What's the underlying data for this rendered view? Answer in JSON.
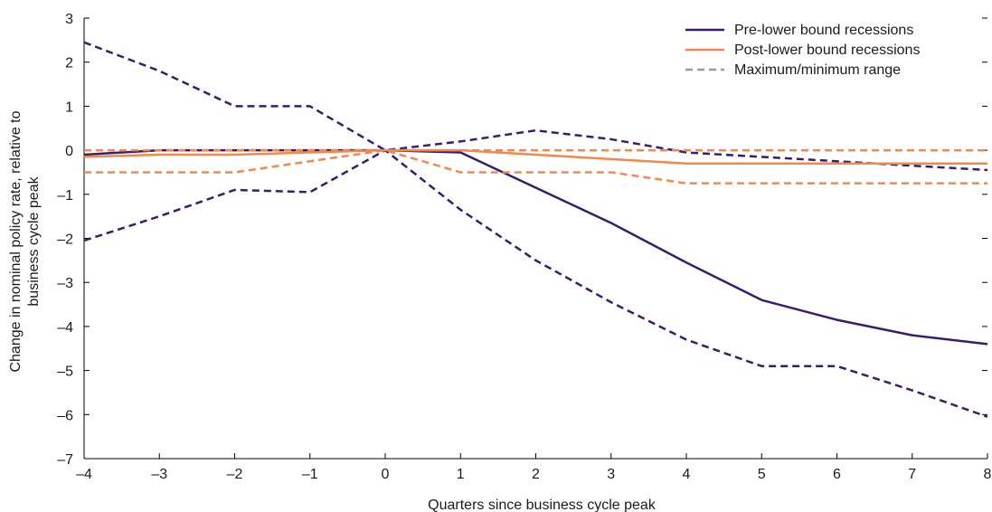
{
  "chart_data": {
    "type": "line",
    "xlabel": "Quarters since business cycle peak",
    "ylabel": [
      "Change in nominal policy rate, relative to",
      "business cycle peak"
    ],
    "xlim": [
      -4,
      8
    ],
    "ylim": [
      -7,
      3
    ],
    "x": [
      -4,
      -3,
      -2,
      -1,
      0,
      1,
      2,
      3,
      4,
      5,
      6,
      7,
      8
    ],
    "x_tick_labels": [
      "–4",
      "–3",
      "–2",
      "–1",
      "0",
      "1",
      "2",
      "3",
      "4",
      "5",
      "6",
      "7",
      "8"
    ],
    "y_ticks": [
      3,
      2,
      1,
      0,
      -1,
      -2,
      -3,
      -4,
      -5,
      -6,
      -7
    ],
    "y_tick_labels": [
      "3",
      "2",
      "1",
      "0",
      "–1",
      "–2",
      "–3",
      "–4",
      "–5",
      "–6",
      "–7"
    ],
    "legend_position": "top-right",
    "legend": [
      {
        "label": "Pre-lower bound recessions",
        "color": "#3b1c6b",
        "style": "solid"
      },
      {
        "label": "Post-lower bound recessions",
        "color": "#f4884a",
        "style": "solid"
      },
      {
        "label": "Maximum/minimum range",
        "color": "#9a9a9a",
        "style": "dashed"
      }
    ],
    "series": [
      {
        "name": "Pre-lower bound recessions",
        "color": "#3b1c6b",
        "style": "solid",
        "values": [
          -0.1,
          0.0,
          0.0,
          0.0,
          0.0,
          -0.05,
          -0.85,
          -1.65,
          -2.55,
          -3.4,
          -3.85,
          -4.2,
          -4.4
        ]
      },
      {
        "color": "#3b1c6b",
        "style": "dashed",
        "values": [
          2.45,
          1.8,
          1.0,
          1.0,
          0.0,
          0.2,
          0.45,
          0.25,
          -0.05,
          -0.15,
          -0.25,
          -0.35,
          -0.45
        ]
      },
      {
        "color": "#3b1c6b",
        "style": "dashed",
        "values": [
          -2.05,
          -1.5,
          -0.9,
          -0.95,
          0.0,
          -1.35,
          -2.5,
          -3.45,
          -4.3,
          -4.9,
          -4.9,
          -5.45,
          -6.05
        ]
      },
      {
        "name": "Post-lower bound recessions",
        "color": "#f4884a",
        "style": "solid",
        "values": [
          -0.15,
          -0.1,
          -0.1,
          -0.05,
          0.0,
          0.0,
          -0.1,
          -0.2,
          -0.3,
          -0.3,
          -0.3,
          -0.3,
          -0.3
        ]
      },
      {
        "color": "#f4884a",
        "style": "dashed",
        "values": [
          0.0,
          0.0,
          0.0,
          0.0,
          0.0,
          0.0,
          0.0,
          0.0,
          0.0,
          0.0,
          0.0,
          0.0,
          0.0
        ]
      },
      {
        "color": "#f4884a",
        "style": "dashed",
        "values": [
          -0.5,
          -0.5,
          -0.5,
          -0.25,
          0.0,
          -0.5,
          -0.5,
          -0.5,
          -0.75,
          -0.75,
          -0.75,
          -0.75,
          -0.75
        ]
      }
    ]
  }
}
